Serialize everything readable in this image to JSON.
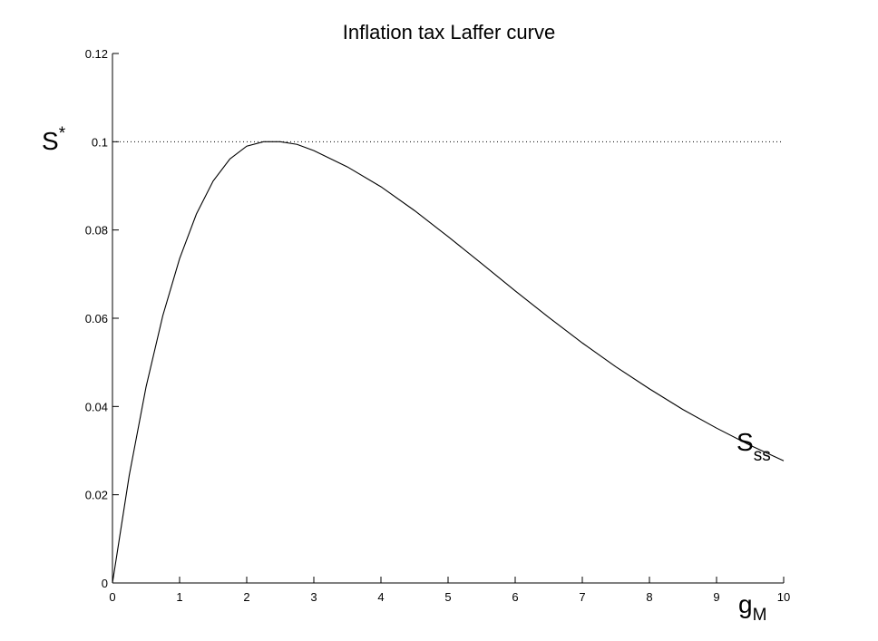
{
  "chart_data": {
    "type": "line",
    "title": "Inflation tax Laffer curve",
    "xlim": [
      0,
      10
    ],
    "ylim": [
      0,
      0.12
    ],
    "x_ticks": [
      0,
      1,
      2,
      3,
      4,
      5,
      6,
      7,
      8,
      9,
      10
    ],
    "y_ticks": [
      0,
      0.02,
      0.04,
      0.06,
      0.08,
      0.1,
      0.12
    ],
    "x_tick_labels": [
      "0",
      "1",
      "2",
      "3",
      "4",
      "5",
      "6",
      "7",
      "8",
      "9",
      "10"
    ],
    "y_tick_labels": [
      "0",
      "0.02",
      "0.04",
      "0.06",
      "0.08",
      "0.1",
      "0.12"
    ],
    "xlabel": {
      "main": "g",
      "sub": "M"
    },
    "ylabel": {
      "main": "S",
      "sup": "*"
    },
    "grid": false,
    "reference_line": {
      "y": 0.1,
      "style": "dotted",
      "label_main": "S",
      "label_sup": "*"
    },
    "series": [
      {
        "label_main": "S",
        "label_sub": "ss",
        "color": "#000000",
        "x": [
          0,
          0.25,
          0.5,
          0.75,
          1,
          1.25,
          1.5,
          1.75,
          2,
          2.25,
          2.5,
          2.75,
          3,
          3.5,
          4,
          4.5,
          5,
          5.5,
          6,
          6.5,
          7,
          7.5,
          8,
          8.5,
          9,
          9.5,
          10
        ],
        "y": [
          0,
          0.0244,
          0.0444,
          0.0606,
          0.0735,
          0.0836,
          0.0911,
          0.0961,
          0.099,
          0.1,
          0.1,
          0.0994,
          0.098,
          0.0943,
          0.0898,
          0.0844,
          0.0785,
          0.0724,
          0.0662,
          0.0602,
          0.0544,
          0.049,
          0.044,
          0.0393,
          0.0351,
          0.0312,
          0.0277
        ]
      }
    ]
  }
}
